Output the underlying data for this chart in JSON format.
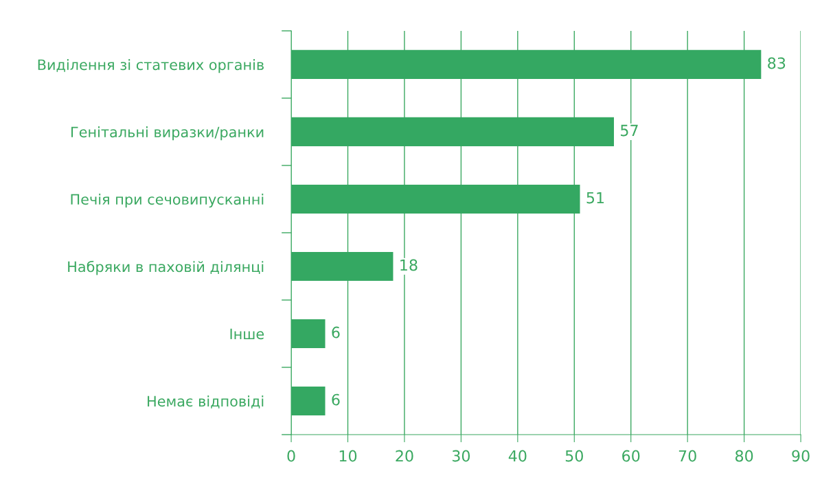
{
  "chart_data": {
    "type": "bar",
    "orientation": "horizontal",
    "categories": [
      "Виділення зі статевих органів",
      "Генітальні виразки/ранки",
      "Печія при сечовипусканні",
      "Набряки в паховій ділянці",
      "Інше",
      "Немає відповіді"
    ],
    "values": [
      83,
      57,
      51,
      18,
      6,
      6
    ],
    "color": "#34a862",
    "xlim": [
      0,
      90
    ],
    "xticks": [
      0,
      10,
      20,
      30,
      40,
      50,
      60,
      70,
      80,
      90
    ],
    "grid": "x",
    "data_labels": true
  }
}
